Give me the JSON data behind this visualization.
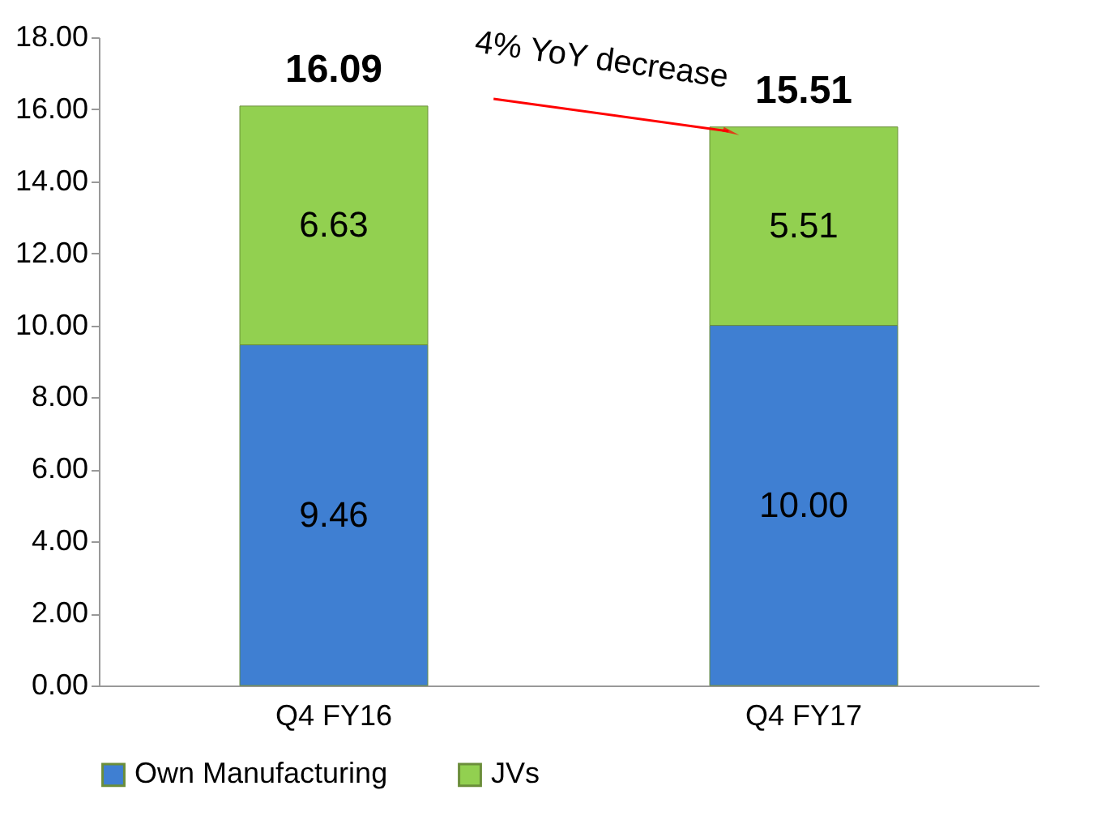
{
  "chart_data": {
    "type": "bar",
    "stacked": true,
    "categories": [
      "Q4 FY16",
      "Q4 FY17"
    ],
    "series": [
      {
        "name": "Own Manufacturing",
        "color": "#3f7fd2",
        "values": [
          9.46,
          10.0
        ],
        "value_labels": [
          "9.46",
          "10.00"
        ]
      },
      {
        "name": "JVs",
        "color": "#92d050",
        "values": [
          6.63,
          5.51
        ],
        "value_labels": [
          "6.63",
          "5.51"
        ]
      }
    ],
    "ylim": [
      0,
      18
    ],
    "yticks": [
      {
        "value": 0,
        "label": "0.00"
      },
      {
        "value": 2,
        "label": "2.00"
      },
      {
        "value": 4,
        "label": "4.00"
      },
      {
        "value": 6,
        "label": "6.00"
      },
      {
        "value": 8,
        "label": "8.00"
      },
      {
        "value": 10,
        "label": "10.00"
      },
      {
        "value": 12,
        "label": "12.00"
      },
      {
        "value": 14,
        "label": "14.00"
      },
      {
        "value": 16,
        "label": "16.00"
      },
      {
        "value": 18,
        "label": "18.00"
      }
    ],
    "totals": [
      "16.09",
      "15.51"
    ],
    "annotations": [
      "4% YoY decrease"
    ],
    "grid": false,
    "legend": "bottom"
  }
}
